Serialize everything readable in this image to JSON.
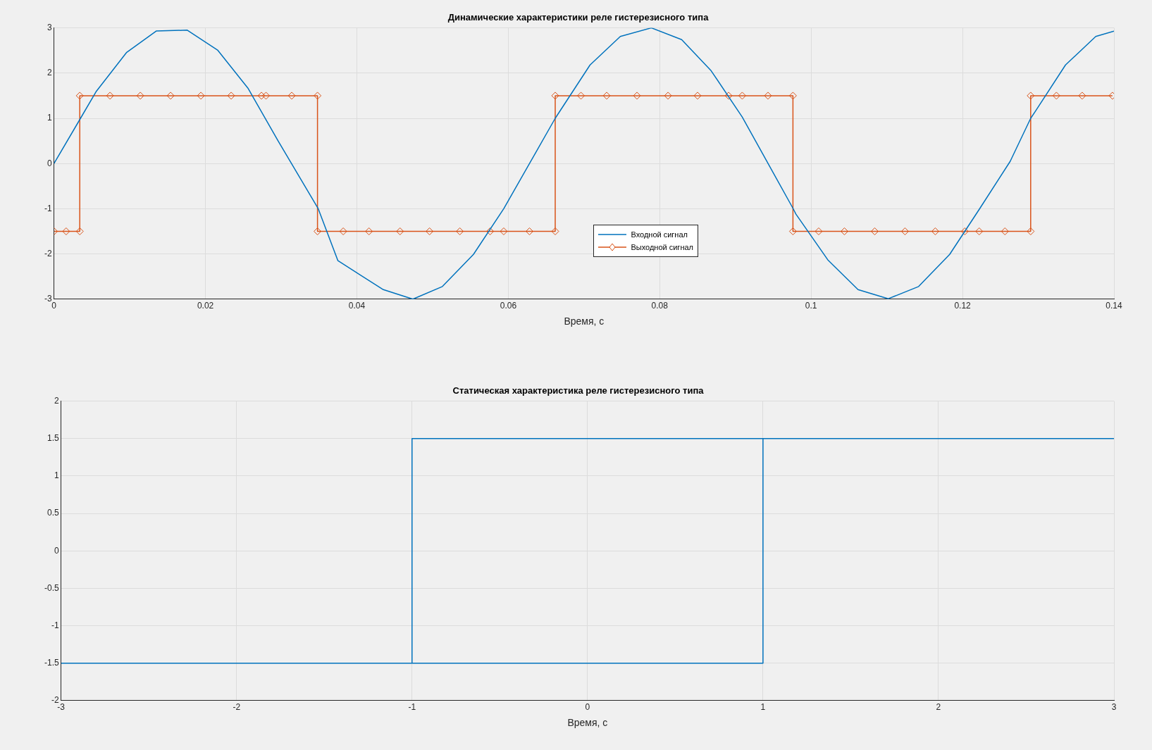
{
  "chart_data": [
    {
      "type": "line",
      "title": "Динамические характеристики реле гистерезисного типа",
      "xlabel": "Время, с",
      "xlim": [
        0,
        0.14
      ],
      "xticks": [
        0,
        0.02,
        0.04,
        0.06,
        0.08,
        0.1,
        0.12,
        0.14
      ],
      "ylim": [
        -3,
        3
      ],
      "yticks": [
        -3,
        -2,
        -1,
        0,
        1,
        2,
        3
      ],
      "grid": true,
      "legend": "bottom",
      "series": [
        {
          "name": "Входной сигнал",
          "color": "#0072bd",
          "marker": "none",
          "x": [
            0,
            0.0035,
            0.0056,
            0.0096,
            0.0135,
            0.0176,
            0.0216,
            0.0256,
            0.0296,
            0.0349,
            0.0375,
            0.0435,
            0.0474,
            0.0513,
            0.0554,
            0.0594,
            0.0662,
            0.0708,
            0.0748,
            0.0789,
            0.0829,
            0.0868,
            0.0909,
            0.0976,
            0.098,
            0.1022,
            0.1062,
            0.1102,
            0.1142,
            0.1183,
            0.1223,
            0.1263,
            0.129,
            0.1296,
            0.1336,
            0.1376,
            0.14
          ],
          "values": [
            0,
            1.0,
            1.6,
            2.46,
            2.93,
            2.95,
            2.51,
            1.67,
            0.5,
            -1.0,
            -2.15,
            -2.79,
            -3.0,
            -2.72,
            -2.01,
            -1.0,
            1.0,
            2.18,
            2.81,
            3.0,
            2.74,
            2.05,
            1.03,
            -0.99,
            -1.12,
            -2.13,
            -2.79,
            -2.99,
            -2.72,
            -2.01,
            -0.99,
            0.05,
            1.0,
            1.15,
            2.18,
            2.81,
            2.93
          ]
        },
        {
          "name": "Выходной сигнал",
          "color": "#d95319",
          "marker": "diamond",
          "x": [
            0,
            0.0016,
            0.0034,
            0.0034,
            0.0074,
            0.0114,
            0.0154,
            0.0194,
            0.0234,
            0.0274,
            0.028,
            0.0314,
            0.0348,
            0.0348,
            0.0382,
            0.0416,
            0.0457,
            0.0496,
            0.0536,
            0.0576,
            0.0594,
            0.0628,
            0.0662,
            0.0662,
            0.0696,
            0.073,
            0.077,
            0.0811,
            0.085,
            0.0891,
            0.0909,
            0.0943,
            0.0976,
            0.0976,
            0.101,
            0.1044,
            0.1084,
            0.1124,
            0.1164,
            0.1203,
            0.1222,
            0.1256,
            0.129,
            0.129,
            0.1324,
            0.1358,
            0.1398
          ],
          "values": [
            -1.5,
            -1.5,
            -1.5,
            1.5,
            1.5,
            1.5,
            1.5,
            1.5,
            1.5,
            1.5,
            1.5,
            1.5,
            1.5,
            -1.5,
            -1.5,
            -1.5,
            -1.5,
            -1.5,
            -1.5,
            -1.5,
            -1.5,
            -1.5,
            -1.5,
            1.5,
            1.5,
            1.5,
            1.5,
            1.5,
            1.5,
            1.5,
            1.5,
            1.5,
            1.5,
            -1.5,
            -1.5,
            -1.5,
            -1.5,
            -1.5,
            -1.5,
            -1.5,
            -1.5,
            -1.5,
            -1.5,
            1.5,
            1.5,
            1.5,
            1.5
          ]
        }
      ]
    },
    {
      "type": "line",
      "title": "Статическая характеристика реле гистерезисного типа",
      "xlabel": "Время, с",
      "xlim": [
        -3,
        3
      ],
      "xticks": [
        -3,
        -2,
        -1,
        0,
        1,
        2,
        3
      ],
      "ylim": [
        -2,
        2
      ],
      "yticks": [
        -2,
        -1.5,
        -1,
        -0.5,
        0,
        0.5,
        1,
        1.5,
        2
      ],
      "grid": true,
      "series": [
        {
          "color": "#0072bd",
          "marker": "none",
          "x": [
            -3,
            1,
            1,
            3,
            -1,
            -1
          ],
          "values": [
            -1.5,
            -1.5,
            1.5,
            1.5,
            1.5,
            -1.5
          ]
        }
      ]
    }
  ]
}
